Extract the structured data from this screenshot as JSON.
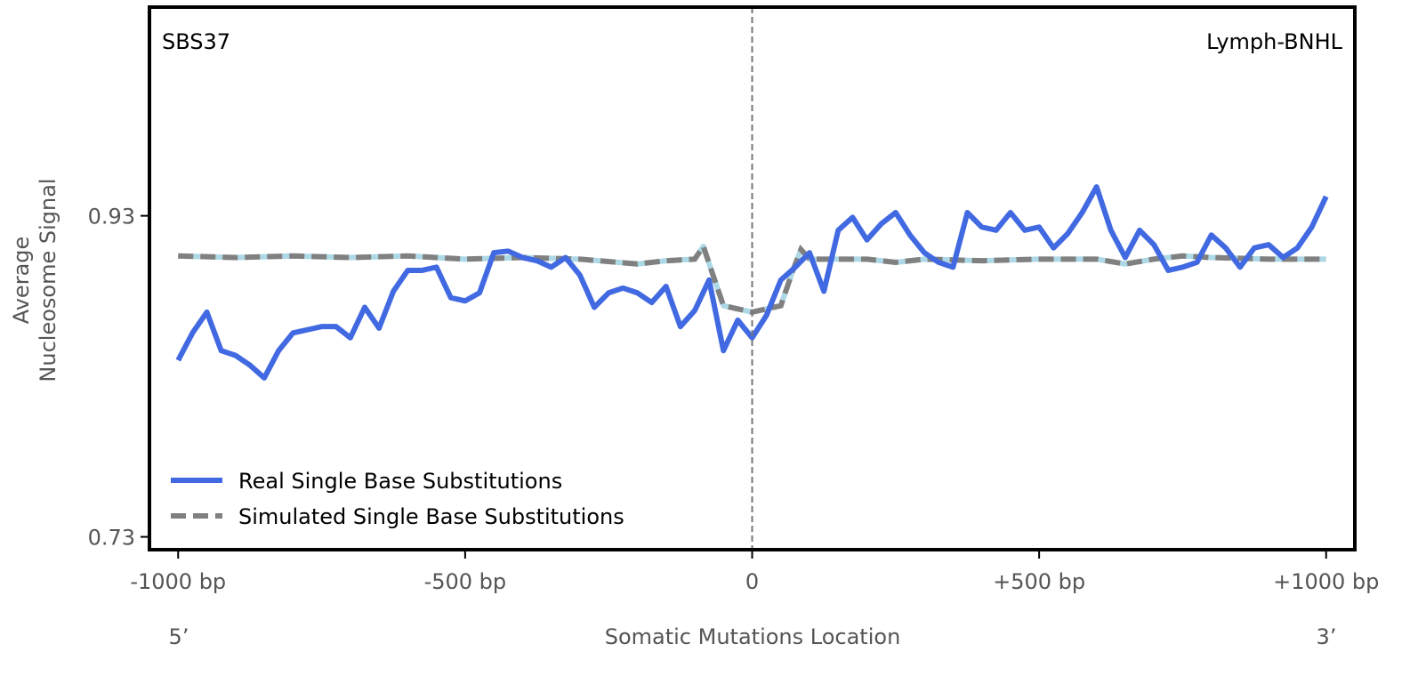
{
  "chart_data": {
    "type": "line",
    "title": "",
    "annotations": {
      "left": "SBS37",
      "right": "Lymph-BNHL"
    },
    "xlabel": "Somatic Mutations Location",
    "ylabel_line1": "Average",
    "ylabel_line2": "Nucleosome Signal",
    "x_end_labels": {
      "left": "5’",
      "right": "3’"
    },
    "xlim": [
      -1050,
      1050
    ],
    "ylim": [
      0.722,
      1.06
    ],
    "xticks": [
      {
        "value": -1000,
        "label": "-1000 bp"
      },
      {
        "value": -500,
        "label": "-500 bp"
      },
      {
        "value": 0,
        "label": "0"
      },
      {
        "value": 500,
        "label": "+500 bp"
      },
      {
        "value": 1000,
        "label": "+1000 bp"
      }
    ],
    "yticks": [
      {
        "value": 0.93,
        "label": "0.93"
      },
      {
        "value": 0.73,
        "label": "0.73"
      }
    ],
    "grid": false,
    "legend_placement": "bottom-left",
    "vline_at": 0,
    "series": [
      {
        "name": "Real Single Base Substitutions",
        "color": "#4169e1",
        "style": "solid",
        "x_start": -1000,
        "x_step": 25,
        "values": [
          0.84,
          0.857,
          0.87,
          0.846,
          0.843,
          0.837,
          0.829,
          0.846,
          0.857,
          0.859,
          0.861,
          0.861,
          0.854,
          0.873,
          0.86,
          0.883,
          0.896,
          0.896,
          0.898,
          0.879,
          0.877,
          0.882,
          0.907,
          0.908,
          0.904,
          0.902,
          0.898,
          0.904,
          0.893,
          0.873,
          0.882,
          0.885,
          0.882,
          0.876,
          0.886,
          0.861,
          0.871,
          0.89,
          0.846,
          0.865,
          0.854,
          0.868,
          0.89,
          0.898,
          0.907,
          0.883,
          0.921,
          0.929,
          0.915,
          0.925,
          0.932,
          0.918,
          0.907,
          0.901,
          0.898,
          0.932,
          0.923,
          0.921,
          0.932,
          0.921,
          0.923,
          0.91,
          0.919,
          0.932,
          0.948,
          0.921,
          0.904,
          0.921,
          0.912,
          0.896,
          0.898,
          0.901,
          0.918,
          0.91,
          0.898,
          0.91,
          0.912,
          0.904,
          0.91,
          0.923,
          0.942
        ]
      },
      {
        "name": "Simulated Single Base Substitutions",
        "color": "#808080",
        "underlay_color": "#add8e6",
        "style": "dashed",
        "x": [
          -1000,
          -900,
          -800,
          -700,
          -600,
          -500,
          -400,
          -300,
          -200,
          -150,
          -100,
          -85,
          -70,
          -50,
          -25,
          0,
          25,
          50,
          70,
          85,
          100,
          200,
          250,
          300,
          400,
          500,
          600,
          650,
          700,
          750,
          800,
          900,
          1000
        ],
        "values": [
          0.905,
          0.904,
          0.905,
          0.904,
          0.905,
          0.903,
          0.904,
          0.903,
          0.9,
          0.902,
          0.903,
          0.911,
          0.895,
          0.874,
          0.872,
          0.87,
          0.872,
          0.874,
          0.895,
          0.909,
          0.903,
          0.903,
          0.901,
          0.903,
          0.902,
          0.903,
          0.903,
          0.9,
          0.903,
          0.905,
          0.904,
          0.903,
          0.903
        ]
      }
    ]
  }
}
